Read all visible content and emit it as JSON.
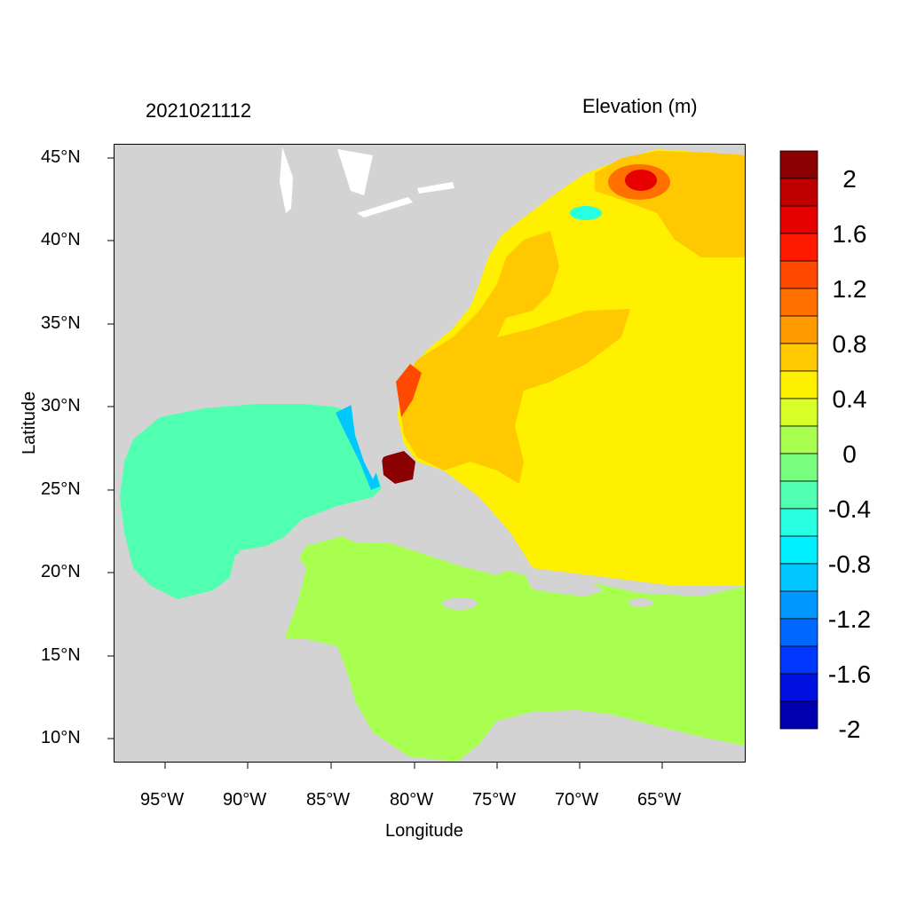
{
  "header": {
    "datetime": "2021021112",
    "variable": "Elevation (m)"
  },
  "axes": {
    "xlabel": "Longitude",
    "ylabel": "Latitude",
    "lon_ticks": [
      "95°W",
      "90°W",
      "85°W",
      "80°W",
      "75°W",
      "70°W",
      "65°W"
    ],
    "lat_ticks": [
      "45°N",
      "40°N",
      "35°N",
      "30°N",
      "25°N",
      "20°N",
      "15°N",
      "10°N"
    ]
  },
  "colorbar": {
    "labels": [
      "2",
      "1.6",
      "1.2",
      "0.8",
      "0.4",
      "0",
      "-0.4",
      "-0.8",
      "-1.2",
      "-1.6",
      "-2"
    ],
    "colors": [
      "#8b0000",
      "#c00000",
      "#e60000",
      "#ff1a00",
      "#ff4800",
      "#ff7000",
      "#ff9a00",
      "#ffc800",
      "#fff000",
      "#d8ff28",
      "#a8ff50",
      "#78ff80",
      "#50ffb0",
      "#28ffe0",
      "#00f0ff",
      "#00c8ff",
      "#0098ff",
      "#0068ff",
      "#0038ff",
      "#0010e0",
      "#0000b0"
    ]
  },
  "map": {
    "land_color": "#d3d3d3",
    "gulf_color": "#50ffb0",
    "atlantic_color": "#fff000",
    "caribbean_color": "#a8ff50",
    "surge_color": "#ffc800"
  }
}
